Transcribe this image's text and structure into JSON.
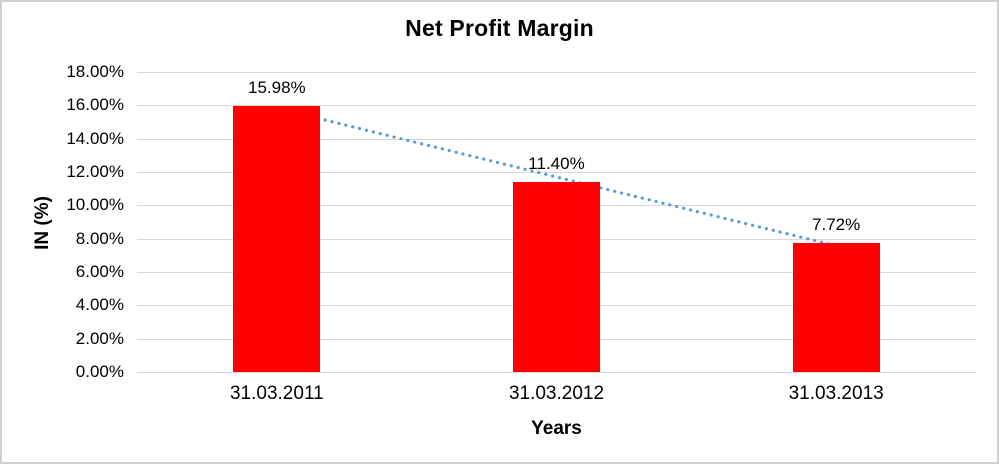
{
  "chart_data": {
    "type": "bar",
    "title": "Net Profit Margin",
    "xlabel": "Years",
    "ylabel": "IN (%)",
    "categories": [
      "31.03.2011",
      "31.03.2012",
      "31.03.2013"
    ],
    "values": [
      15.98,
      11.4,
      7.72
    ],
    "value_labels": [
      "15.98%",
      "11.40%",
      "7.72%"
    ],
    "ylim": [
      0,
      18
    ],
    "ytick_step": 2,
    "ytick_labels": [
      "0.00%",
      "2.00%",
      "4.00%",
      "6.00%",
      "8.00%",
      "10.00%",
      "12.00%",
      "14.00%",
      "16.00%",
      "18.00%"
    ],
    "grid": true,
    "legend": "none",
    "bar_color": "#FF0000",
    "gridline_color": "#D9D9D9",
    "text_color": "#000000",
    "border_color": "#CFCFCF",
    "trendline": {
      "type": "linear",
      "style": "dotted",
      "color": "#5B9BD5"
    }
  }
}
